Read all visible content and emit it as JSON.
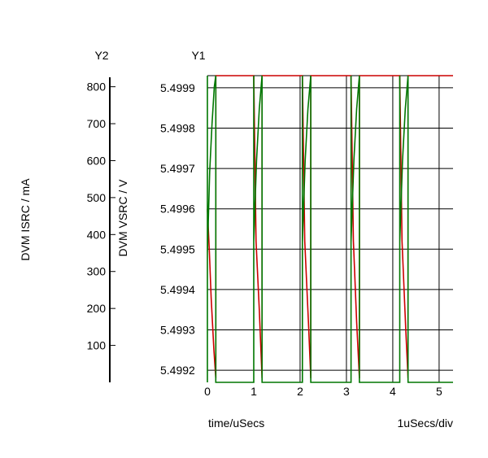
{
  "chart_data": {
    "type": "line",
    "title": "",
    "xlabel": "time/uSecs",
    "x_scale_label": "1uSecs/div",
    "xlim": [
      0,
      5.3
    ],
    "x_ticks": [
      "0",
      "1",
      "2",
      "3",
      "4",
      "5"
    ],
    "y_axes": {
      "y1": {
        "header": "Y1",
        "label": "DVM VSRC / V",
        "ylim": [
          5.49917,
          5.49993
        ],
        "ticks": [
          "5.4992",
          "5.4993",
          "5.4994",
          "5.4995",
          "5.4996",
          "5.4997",
          "5.4998",
          "5.4999"
        ]
      },
      "y2": {
        "header": "Y2",
        "label": "DVM ISRC / mA",
        "ylim": [
          0,
          830
        ],
        "ticks": [
          "100",
          "200",
          "300",
          "400",
          "500",
          "600",
          "700",
          "800"
        ]
      }
    },
    "grid": true,
    "legend": "none",
    "series": [
      {
        "axis": "y1",
        "color": "#cc0000",
        "points": [
          [
            0,
            5.4996
          ],
          [
            0.04,
            5.4995
          ],
          [
            0.08,
            5.49938
          ],
          [
            0.14,
            5.49925
          ],
          [
            0.18,
            5.49918
          ],
          [
            0.18,
            5.49993
          ],
          [
            1.0,
            5.49993
          ],
          [
            1.05,
            5.49952
          ],
          [
            1.12,
            5.49935
          ],
          [
            1.18,
            5.49918
          ],
          [
            1.18,
            5.49993
          ],
          [
            2.05,
            5.49993
          ],
          [
            2.1,
            5.49952
          ],
          [
            2.18,
            5.49932
          ],
          [
            2.23,
            5.49918
          ],
          [
            2.23,
            5.49993
          ],
          [
            3.1,
            5.49993
          ],
          [
            3.15,
            5.49952
          ],
          [
            3.22,
            5.49932
          ],
          [
            3.28,
            5.49918
          ],
          [
            3.28,
            5.49993
          ],
          [
            4.15,
            5.49993
          ],
          [
            4.2,
            5.49952
          ],
          [
            4.28,
            5.4993
          ],
          [
            4.33,
            5.49918
          ],
          [
            4.33,
            5.49993
          ],
          [
            5.3,
            5.49993
          ]
        ]
      },
      {
        "axis": "y2",
        "color": "#007700",
        "points": [
          [
            0,
            0
          ],
          [
            0,
            830
          ],
          [
            0,
            350
          ],
          [
            0.05,
            570
          ],
          [
            0.1,
            700
          ],
          [
            0.15,
            800
          ],
          [
            0.18,
            830
          ],
          [
            0.18,
            0
          ],
          [
            1.0,
            0
          ],
          [
            1.0,
            830
          ],
          [
            1.0,
            380
          ],
          [
            1.06,
            600
          ],
          [
            1.12,
            740
          ],
          [
            1.18,
            830
          ],
          [
            1.18,
            0
          ],
          [
            2.05,
            0
          ],
          [
            2.05,
            830
          ],
          [
            2.05,
            380
          ],
          [
            2.11,
            600
          ],
          [
            2.17,
            740
          ],
          [
            2.23,
            830
          ],
          [
            2.23,
            0
          ],
          [
            3.1,
            0
          ],
          [
            3.1,
            830
          ],
          [
            3.1,
            380
          ],
          [
            3.16,
            600
          ],
          [
            3.22,
            740
          ],
          [
            3.28,
            830
          ],
          [
            3.28,
            0
          ],
          [
            4.15,
            0
          ],
          [
            4.15,
            830
          ],
          [
            4.15,
            380
          ],
          [
            4.21,
            600
          ],
          [
            4.27,
            740
          ],
          [
            4.33,
            830
          ],
          [
            4.33,
            0
          ],
          [
            5.3,
            0
          ]
        ]
      }
    ]
  }
}
